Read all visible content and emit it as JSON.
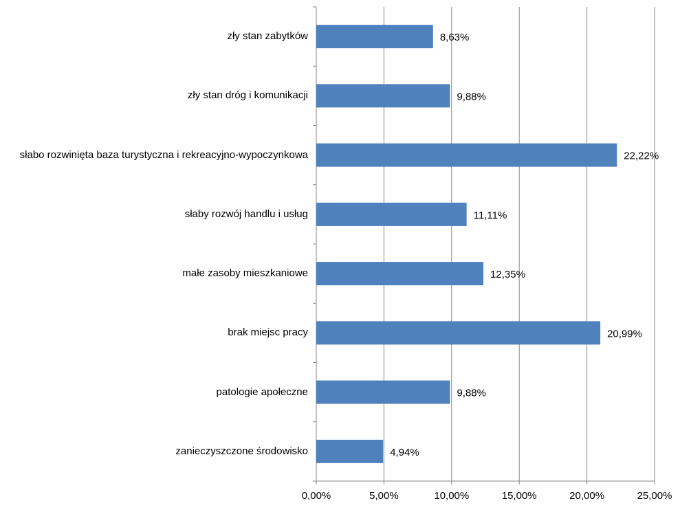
{
  "chart_data": {
    "type": "bar",
    "orientation": "horizontal",
    "categories": [
      "zły stan zabytków",
      "zły stan dróg i komunikacji",
      "słabo rozwinięta baza turystyczna i rekreacyjno-wypoczynkowa",
      "słaby rozwój handlu i usług",
      "małe zasoby mieszkaniowe",
      "brak miejsc pracy",
      "patologie apołeczne",
      "zanieczyszczone środowisko"
    ],
    "values": [
      8.63,
      9.88,
      22.22,
      11.11,
      12.35,
      20.99,
      9.88,
      4.94
    ],
    "value_labels": [
      "8,63%",
      "9,88%",
      "22,22%",
      "11,11%",
      "12,35%",
      "20,99%",
      "9,88%",
      "4,94%"
    ],
    "color": "#4f81bd",
    "xlim": [
      0,
      25
    ],
    "xticks": [
      {
        "value": 0,
        "label": "0,00%"
      },
      {
        "value": 5,
        "label": "5,00%"
      },
      {
        "value": 10,
        "label": "10,00%"
      },
      {
        "value": 15,
        "label": "15,00%"
      },
      {
        "value": 20,
        "label": "20,00%"
      },
      {
        "value": 25,
        "label": "25,00%"
      }
    ],
    "grid": true
  }
}
